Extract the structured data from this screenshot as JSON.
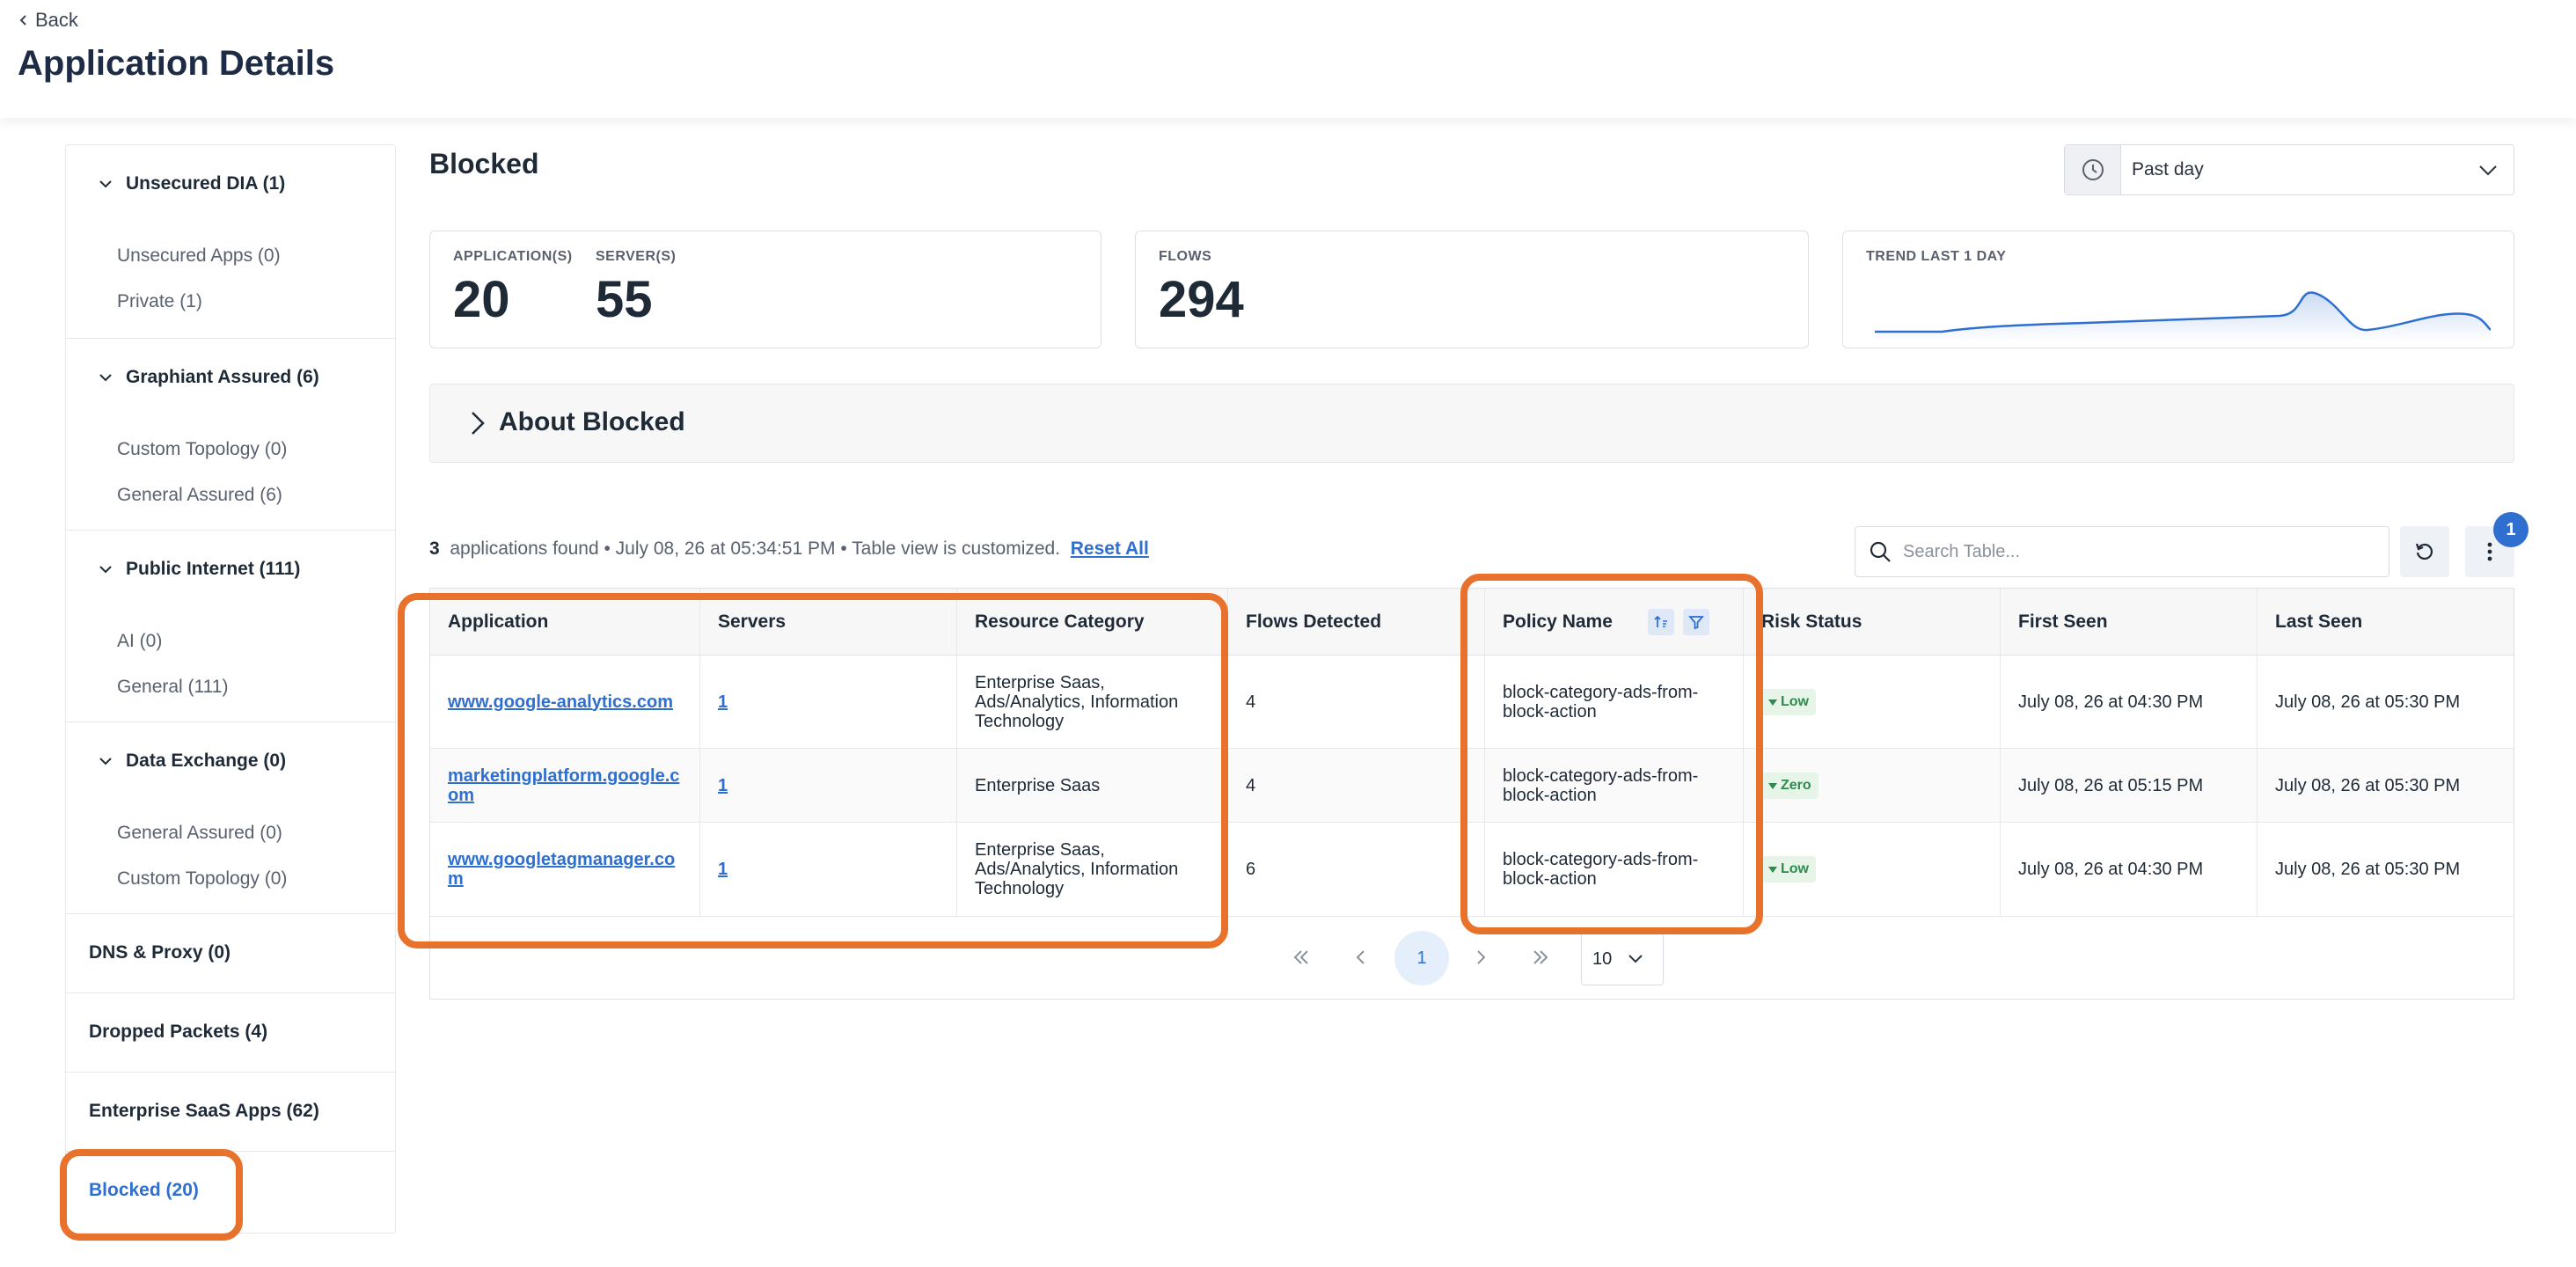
{
  "header": {
    "back_label": "Back",
    "title": "Application Details"
  },
  "sidebar": {
    "groups": [
      {
        "label": "Unsecured DIA (1)",
        "items": [
          "Unsecured Apps (0)",
          "Private (1)"
        ]
      },
      {
        "label": "Graphiant Assured (6)",
        "items": [
          "Custom Topology (0)",
          "General Assured (6)"
        ]
      },
      {
        "label": "Public Internet (111)",
        "items": [
          "AI (0)",
          "General (111)"
        ]
      },
      {
        "label": "Data Exchange (0)",
        "items": [
          "General Assured (0)",
          "Custom Topology (0)"
        ]
      }
    ],
    "singles": [
      "DNS & Proxy (0)",
      "Dropped Packets (4)",
      "Enterprise SaaS Apps (62)",
      "Blocked (20)"
    ]
  },
  "main": {
    "title": "Blocked",
    "time_range": "Past day",
    "stats": {
      "applications_label": "APPLICATION(S)",
      "applications_value": "20",
      "servers_label": "SERVER(S)",
      "servers_value": "55",
      "flows_label": "FLOWS",
      "flows_value": "294",
      "trend_label": "TREND LAST 1 DAY"
    },
    "about_label": "About Blocked",
    "info": {
      "count": "3",
      "text": "applications found • July 08, 26 at 05:34:51 PM • Table view is customized.",
      "reset": "Reset All"
    },
    "search_placeholder": "Search Table...",
    "settings_badge": "1"
  },
  "table": {
    "columns": [
      "Application",
      "Servers",
      "Resource Category",
      "Flows Detected",
      "Policy Name",
      "Risk Status",
      "First Seen",
      "Last Seen"
    ],
    "rows": [
      {
        "application": "www.google-analytics.com",
        "servers": "1",
        "category": "Enterprise Saas, Ads/Analytics, Information Technology",
        "flows": "4",
        "policy": "block-category-ads-from-block-action",
        "risk": "Low",
        "first_seen": "July 08, 26 at 04:30 PM",
        "last_seen": "July 08, 26 at 05:30 PM"
      },
      {
        "application": "marketingplatform.google.com",
        "servers": "1",
        "category": "Enterprise Saas",
        "flows": "4",
        "policy": "block-category-ads-from-block-action",
        "risk": "Zero",
        "first_seen": "July 08, 26 at 05:15 PM",
        "last_seen": "July 08, 26 at 05:30 PM"
      },
      {
        "application": "www.googletagmanager.com",
        "servers": "1",
        "category": "Enterprise Saas, Ads/Analytics, Information Technology",
        "flows": "6",
        "policy": "block-category-ads-from-block-action",
        "risk": "Low",
        "first_seen": "July 08, 26 at 04:30 PM",
        "last_seen": "July 08, 26 at 05:30 PM"
      }
    ],
    "pagination": {
      "current_page": "1",
      "page_size": "10"
    }
  },
  "colors": {
    "accent": "#2f6fd0",
    "annotation": "#e8722c",
    "risk_green": "#2e8b4e"
  }
}
